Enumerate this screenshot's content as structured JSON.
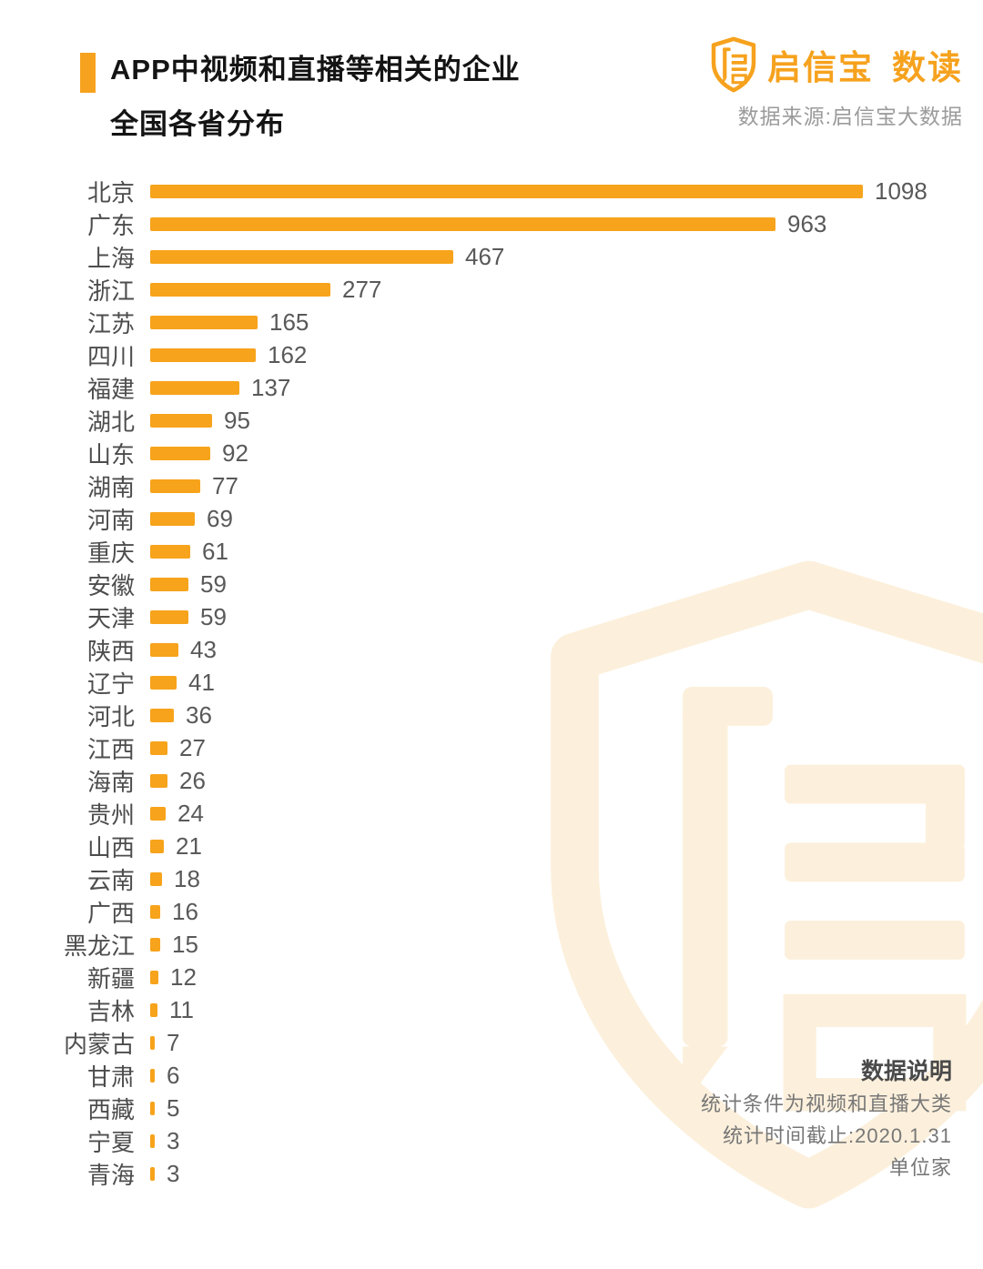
{
  "header": {
    "title_line1": "APP中视频和直播等相关的企业",
    "title_line2": "全国各省分布",
    "brand_name": "启信宝",
    "brand_suffix": "数读",
    "source": "数据来源:启信宝大数据"
  },
  "chart_data": {
    "type": "bar",
    "orientation": "horizontal",
    "title": "APP中视频和直播等相关的企业全国各省分布",
    "unit": "家",
    "categories": [
      "北京",
      "广东",
      "上海",
      "浙江",
      "江苏",
      "四川",
      "福建",
      "湖北",
      "山东",
      "湖南",
      "河南",
      "重庆",
      "安徽",
      "天津",
      "陕西",
      "辽宁",
      "河北",
      "江西",
      "海南",
      "贵州",
      "山西",
      "云南",
      "广西",
      "黑龙江",
      "新疆",
      "吉林",
      "内蒙古",
      "甘肃",
      "西藏",
      "宁夏",
      "青海"
    ],
    "values": [
      1098,
      963,
      467,
      277,
      165,
      162,
      137,
      95,
      92,
      77,
      69,
      61,
      59,
      59,
      43,
      41,
      36,
      27,
      26,
      24,
      21,
      18,
      16,
      15,
      12,
      11,
      7,
      6,
      5,
      3,
      3
    ],
    "xlim": [
      0,
      1098
    ],
    "grid": false,
    "legend": false,
    "value_labels": true
  },
  "notes": {
    "title": "数据说明",
    "lines": [
      "统计条件为视频和直播大类",
      "统计时间截止:2020.1.31",
      "单位家"
    ]
  },
  "colors": {
    "bar": "#f7a31b",
    "accent": "#f6a21e",
    "watermark": "#fcf0dc",
    "title_text": "#141414",
    "label_text": "#4d4d4d",
    "value_text": "#595959"
  }
}
